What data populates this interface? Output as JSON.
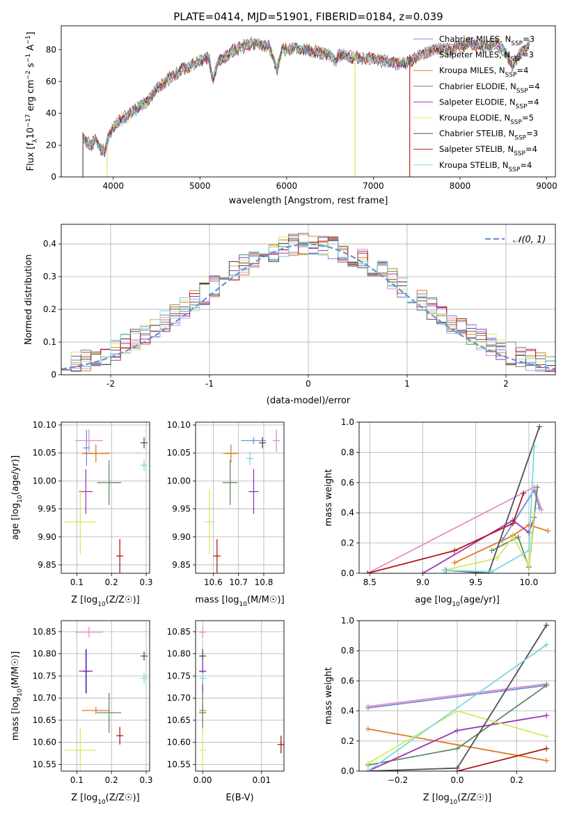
{
  "title": "PLATE=0414, MJD=51901, FIBERID=0184, z=0.039",
  "series_colors": {
    "chabrier_miles": "#6a8fd8",
    "salpeter_miles": "#e48cc8",
    "kroupa_miles": "#e07820",
    "chabrier_elodie": "#5f8a62",
    "salpeter_elodie": "#9a34b0",
    "kroupa_elodie": "#d8e860",
    "chabrier_stelib": "#505050",
    "salpeter_stelib": "#b01818",
    "kroupa_stelib": "#7ad8e0",
    "gaussian": "#6a8fd8"
  },
  "chart_data": [
    {
      "id": "spectrum",
      "type": "line",
      "xlabel": "wavelength [Angstrom, rest frame]",
      "ylabel": "Flux [f_λ10^-17 erg cm^-2 s^-1 A^-1]",
      "xlim": [
        3400,
        9100
      ],
      "ylim": [
        0,
        95
      ],
      "xticks": [
        4000,
        5000,
        6000,
        7000,
        8000,
        9000
      ],
      "yticks": [
        0,
        20,
        40,
        60,
        80
      ],
      "grid": false,
      "legend_position": "right",
      "legend": [
        {
          "label": "Chabrier MILES, N_SSP=3",
          "color_key": "chabrier_miles"
        },
        {
          "label": "Salpeter MILES, N_SSP=3",
          "color_key": "salpeter_miles"
        },
        {
          "label": "Kroupa MILES, N_SSP=4",
          "color_key": "kroupa_miles"
        },
        {
          "label": "Chabrier ELODIE, N_SSP=4",
          "color_key": "chabrier_elodie"
        },
        {
          "label": "Salpeter ELODIE, N_SSP=4",
          "color_key": "salpeter_elodie"
        },
        {
          "label": "Kroupa ELODIE, N_SSP=5",
          "color_key": "kroupa_elodie"
        },
        {
          "label": "Chabrier STELIB, N_SSP=3",
          "color_key": "chabrier_stelib"
        },
        {
          "label": "Salpeter STELIB, N_SSP=4",
          "color_key": "salpeter_stelib"
        },
        {
          "label": "Kroupa STELIB, N_SSP=4",
          "color_key": "kroupa_stelib"
        }
      ],
      "x": [
        3650,
        3700,
        3750,
        3800,
        3850,
        3900,
        3950,
        4000,
        4100,
        4200,
        4300,
        4400,
        4500,
        4600,
        4700,
        4800,
        4900,
        5000,
        5100,
        5150,
        5200,
        5300,
        5400,
        5500,
        5600,
        5700,
        5800,
        5890,
        5950,
        6000,
        6100,
        6200,
        6300,
        6400,
        6500,
        6563,
        6600,
        6700,
        6800,
        6900,
        7000,
        7100,
        7200,
        7300,
        7400,
        7500,
        7600,
        7700,
        7800,
        7900,
        8000,
        8100,
        8200,
        8300,
        8400,
        8500,
        8600,
        8700,
        8800
      ],
      "y": [
        25,
        22,
        20,
        24,
        18,
        16,
        26,
        32,
        36,
        40,
        44,
        48,
        55,
        60,
        64,
        68,
        70,
        73,
        75,
        60,
        72,
        76,
        80,
        82,
        84,
        83,
        82,
        68,
        80,
        80,
        81,
        80,
        79,
        78,
        77,
        72,
        77,
        76,
        75,
        74,
        75,
        73,
        72,
        71,
        72,
        75,
        78,
        80,
        81,
        80,
        82,
        84,
        83,
        82,
        84,
        80,
        70,
        78,
        83
      ],
      "spikes": [
        {
          "x": 3650,
          "y_from": 0,
          "y_to": 28,
          "color_key": "chabrier_stelib"
        },
        {
          "x": 3930,
          "y_from": 0,
          "y_to": 18,
          "color_key": "kroupa_elodie"
        },
        {
          "x": 6790,
          "y_from": 0,
          "y_to": 79,
          "color_key": "kroupa_elodie"
        },
        {
          "x": 7420,
          "y_from": 0,
          "y_to": 77,
          "color_key": "salpeter_stelib"
        }
      ]
    },
    {
      "id": "residuals",
      "type": "histogram",
      "xlabel": "(data-model)/error",
      "ylabel": "Normed distribution",
      "xlim": [
        -2.5,
        2.5
      ],
      "ylim": [
        0,
        0.46
      ],
      "xticks": [
        -2,
        -1,
        0,
        1,
        2
      ],
      "yticks": [
        0.0,
        0.1,
        0.2,
        0.3,
        0.4
      ],
      "grid": true,
      "legend_position": "top-right",
      "legend": [
        {
          "label": "𝒩(0, 1)",
          "style": "dashed",
          "color_key": "gaussian"
        }
      ],
      "bin_width": 0.1,
      "bins_from": -2.5,
      "bins_to": 2.5,
      "series_keys": [
        "chabrier_miles",
        "salpeter_miles",
        "kroupa_miles",
        "chabrier_elodie",
        "salpeter_elodie",
        "kroupa_elodie",
        "chabrier_stelib",
        "salpeter_stelib",
        "kroupa_stelib"
      ],
      "curve": "gaussian(0,1)"
    },
    {
      "id": "age_vs_z",
      "type": "errorbar",
      "xlabel": "Z [log10(Z/Z☉)]",
      "ylabel": "age  [log10(age/yr)]",
      "xlim": [
        0.055,
        0.31
      ],
      "ylim": [
        9.835,
        10.105
      ],
      "xticks": [
        0.1,
        0.2,
        0.3
      ],
      "xticklabels": [
        "0.1",
        "0.2",
        "0.3"
      ],
      "yticks": [
        9.85,
        9.9,
        9.95,
        10.0,
        10.05,
        10.1
      ],
      "yticklabels": [
        "9.85",
        "9.90",
        "9.95",
        "10.00",
        "10.05",
        "10.10"
      ],
      "grid": true,
      "points": [
        {
          "key": "chabrier_miles",
          "x": 0.128,
          "y": 10.059,
          "xerr": 0.0,
          "yerr": 0.032
        },
        {
          "key": "salpeter_miles",
          "x": 0.135,
          "y": 10.072,
          "xerr": 0.04,
          "yerr": 0.02
        },
        {
          "key": "kroupa_miles",
          "x": 0.155,
          "y": 10.049,
          "xerr": 0.04,
          "yerr": 0.016
        },
        {
          "key": "chabrier_elodie",
          "x": 0.193,
          "y": 9.997,
          "xerr": 0.035,
          "yerr": 0.04
        },
        {
          "key": "salpeter_elodie",
          "x": 0.126,
          "y": 9.981,
          "xerr": 0.02,
          "yerr": 0.04
        },
        {
          "key": "kroupa_elodie",
          "x": 0.11,
          "y": 9.927,
          "xerr": 0.045,
          "yerr": 0.058
        },
        {
          "key": "chabrier_stelib",
          "x": 0.294,
          "y": 10.068,
          "xerr": 0.005,
          "yerr": 0.01
        },
        {
          "key": "salpeter_stelib",
          "x": 0.224,
          "y": 9.866,
          "xerr": 0.008,
          "yerr": 0.03
        },
        {
          "key": "kroupa_stelib",
          "x": 0.294,
          "y": 10.028,
          "xerr": 0.005,
          "yerr": 0.01
        }
      ]
    },
    {
      "id": "age_vs_mass",
      "type": "errorbar",
      "xlabel": "mass [log10(M/M☉)]",
      "ylabel": "",
      "xlim": [
        10.53,
        10.88
      ],
      "ylim": [
        9.835,
        10.105
      ],
      "xticks": [
        10.6,
        10.7,
        10.8
      ],
      "xticklabels": [
        "10.6",
        "10.7",
        "10.8"
      ],
      "yticks": [
        9.85,
        9.9,
        9.95,
        10.0,
        10.05,
        10.1
      ],
      "yticklabels": [
        "9.85",
        "9.90",
        "9.95",
        "10.00",
        "10.05",
        "10.10"
      ],
      "grid": true,
      "points": [
        {
          "key": "chabrier_miles",
          "x": 10.76,
          "y": 10.072,
          "xerr": 0.05,
          "yerr": 0.0
        },
        {
          "key": "salpeter_miles",
          "x": 10.85,
          "y": 10.072,
          "xerr": 0.015,
          "yerr": 0.02
        },
        {
          "key": "kroupa_miles",
          "x": 10.67,
          "y": 10.049,
          "xerr": 0.03,
          "yerr": 0.016
        },
        {
          "key": "chabrier_elodie",
          "x": 10.667,
          "y": 9.997,
          "xerr": 0.03,
          "yerr": 0.04
        },
        {
          "key": "salpeter_elodie",
          "x": 10.76,
          "y": 9.981,
          "xerr": 0.02,
          "yerr": 0.04
        },
        {
          "key": "kroupa_elodie",
          "x": 10.585,
          "y": 9.927,
          "xerr": 0.02,
          "yerr": 0.058
        },
        {
          "key": "chabrier_stelib",
          "x": 10.795,
          "y": 10.068,
          "xerr": 0.005,
          "yerr": 0.01
        },
        {
          "key": "salpeter_stelib",
          "x": 10.615,
          "y": 9.866,
          "xerr": 0.007,
          "yerr": 0.03
        },
        {
          "key": "kroupa_stelib",
          "x": 10.745,
          "y": 10.04,
          "xerr": 0.005,
          "yerr": 0.012
        }
      ]
    },
    {
      "id": "weight_vs_age",
      "type": "line",
      "xlabel": "age  [log10(age/yr)]",
      "ylabel": "mass weight",
      "xlim": [
        8.4,
        10.25
      ],
      "ylim": [
        0,
        1
      ],
      "xticks": [
        8.5,
        9.0,
        9.5,
        10.0
      ],
      "xticklabels": [
        "8.5",
        "9.0",
        "9.5",
        "10.0"
      ],
      "yticks": [
        0,
        0.2,
        0.4,
        0.6,
        0.8,
        1.0
      ],
      "yticklabels": [
        "0.0",
        "0.2",
        "0.4",
        "0.6",
        "0.8",
        "1.0"
      ],
      "grid": true,
      "series": [
        {
          "key": "chabrier_miles",
          "x": [
            9.75,
            10.05,
            10.1
          ],
          "y": [
            0.22,
            0.55,
            0.43
          ]
        },
        {
          "key": "salpeter_miles",
          "x": [
            8.48,
            10.05,
            10.12
          ],
          "y": [
            0.0,
            0.57,
            0.42
          ]
        },
        {
          "key": "kroupa_miles",
          "x": [
            9.3,
            9.85,
            10.0,
            10.18
          ],
          "y": [
            0.07,
            0.25,
            0.32,
            0.28
          ]
        },
        {
          "key": "chabrier_elodie",
          "x": [
            9.65,
            9.9,
            10.0,
            10.08
          ],
          "y": [
            0.15,
            0.24,
            0.04,
            0.57
          ]
        },
        {
          "key": "salpeter_elodie",
          "x": [
            9.0,
            9.85,
            10.0,
            10.05
          ],
          "y": [
            0.0,
            0.35,
            0.27,
            0.37
          ]
        },
        {
          "key": "kroupa_elodie",
          "x": [
            9.2,
            9.7,
            9.85,
            10.0,
            10.05
          ],
          "y": [
            0.02,
            0.1,
            0.24,
            0.05,
            0.4
          ]
        },
        {
          "key": "chabrier_stelib",
          "x": [
            9.22,
            9.62,
            10.1
          ],
          "y": [
            0.02,
            0.0,
            0.97
          ]
        },
        {
          "key": "salpeter_stelib",
          "x": [
            8.48,
            9.3,
            9.85,
            9.95
          ],
          "y": [
            0.0,
            0.15,
            0.33,
            0.53
          ]
        },
        {
          "key": "kroupa_stelib",
          "x": [
            9.2,
            9.65,
            10.0,
            10.05
          ],
          "y": [
            0.02,
            0.01,
            0.15,
            0.84
          ]
        }
      ]
    },
    {
      "id": "mass_vs_z",
      "type": "errorbar",
      "xlabel": "Z [log10(Z/Z☉)]",
      "ylabel": "mass [log10(M/M☉)]",
      "xlim": [
        0.055,
        0.31
      ],
      "ylim": [
        10.535,
        10.875
      ],
      "xticks": [
        0.1,
        0.2,
        0.3
      ],
      "xticklabels": [
        "0.1",
        "0.2",
        "0.3"
      ],
      "yticks": [
        10.55,
        10.6,
        10.65,
        10.7,
        10.75,
        10.8,
        10.85
      ],
      "yticklabels": [
        "10.55",
        "10.60",
        "10.65",
        "10.70",
        "10.75",
        "10.80",
        "10.85"
      ],
      "grid": true,
      "points": [
        {
          "key": "chabrier_miles",
          "x": 0.128,
          "y": 10.76,
          "xerr": 0.0,
          "yerr": 0.05
        },
        {
          "key": "salpeter_miles",
          "x": 0.135,
          "y": 10.849,
          "xerr": 0.04,
          "yerr": 0.012
        },
        {
          "key": "kroupa_miles",
          "x": 0.155,
          "y": 10.672,
          "xerr": 0.04,
          "yerr": 0.0
        },
        {
          "key": "chabrier_elodie",
          "x": 0.193,
          "y": 10.667,
          "xerr": 0.035,
          "yerr": 0.045
        },
        {
          "key": "salpeter_elodie",
          "x": 0.126,
          "y": 10.761,
          "xerr": 0.02,
          "yerr": 0.05
        },
        {
          "key": "kroupa_elodie",
          "x": 0.11,
          "y": 10.582,
          "xerr": 0.045,
          "yerr": 0.05
        },
        {
          "key": "chabrier_stelib",
          "x": 0.294,
          "y": 10.795,
          "xerr": 0.005,
          "yerr": 0.01
        },
        {
          "key": "salpeter_stelib",
          "x": 0.224,
          "y": 10.615,
          "xerr": 0.008,
          "yerr": 0.02
        },
        {
          "key": "kroupa_stelib",
          "x": 0.294,
          "y": 10.745,
          "xerr": 0.005,
          "yerr": 0.012
        }
      ]
    },
    {
      "id": "mass_vs_ebv",
      "type": "errorbar",
      "xlabel": "E(B-V)",
      "ylabel": "",
      "xlim": [
        -0.0012,
        0.0138
      ],
      "ylim": [
        10.535,
        10.875
      ],
      "xticks": [
        0.0,
        0.01
      ],
      "xticklabels": [
        "0.00",
        "0.01"
      ],
      "yticks": [
        10.55,
        10.6,
        10.65,
        10.7,
        10.75,
        10.8,
        10.85
      ],
      "yticklabels": [
        "10.55",
        "10.60",
        "10.65",
        "10.70",
        "10.75",
        "10.80",
        "10.85"
      ],
      "grid": true,
      "points": [
        {
          "key": "chabrier_miles",
          "x": 0.0,
          "y": 10.76,
          "xerr": 0.0,
          "yerr": 0.05
        },
        {
          "key": "salpeter_miles",
          "x": 0.0,
          "y": 10.849,
          "xerr": 0.0,
          "yerr": 0.012
        },
        {
          "key": "kroupa_miles",
          "x": 0.0,
          "y": 10.672,
          "xerr": 0.0,
          "yerr": 0.02
        },
        {
          "key": "chabrier_elodie",
          "x": 0.0,
          "y": 10.667,
          "xerr": 0.0,
          "yerr": 0.045
        },
        {
          "key": "salpeter_elodie",
          "x": 0.0,
          "y": 10.761,
          "xerr": 0.0,
          "yerr": 0.05
        },
        {
          "key": "kroupa_elodie",
          "x": 0.0,
          "y": 10.582,
          "xerr": 0.0,
          "yerr": 0.05
        },
        {
          "key": "chabrier_stelib",
          "x": 0.0,
          "y": 10.795,
          "xerr": 0.0,
          "yerr": 0.01
        },
        {
          "key": "salpeter_stelib",
          "x": 0.0133,
          "y": 10.595,
          "xerr": 0.0,
          "yerr": 0.02
        },
        {
          "key": "kroupa_stelib",
          "x": 0.0,
          "y": 10.745,
          "xerr": 0.0,
          "yerr": 0.012
        }
      ]
    },
    {
      "id": "weight_vs_z",
      "type": "line",
      "xlabel": "Z [log10(Z/Z☉)]",
      "ylabel": "mass weight",
      "xlim": [
        -0.33,
        0.33
      ],
      "ylim": [
        0,
        1
      ],
      "xticks": [
        -0.2,
        0.0,
        0.2
      ],
      "xticklabels": [
        "−0.2",
        "0.0",
        "0.2"
      ],
      "yticks": [
        0,
        0.2,
        0.4,
        0.6,
        0.8,
        1.0
      ],
      "yticklabels": [
        "0.0",
        "0.2",
        "0.4",
        "0.6",
        "0.8",
        "1.0"
      ],
      "grid": true,
      "series": [
        {
          "key": "chabrier_miles",
          "x": [
            -0.3,
            0.3
          ],
          "y": [
            0.42,
            0.57
          ]
        },
        {
          "key": "salpeter_miles",
          "x": [
            -0.3,
            0.3
          ],
          "y": [
            0.43,
            0.58
          ]
        },
        {
          "key": "kroupa_miles",
          "x": [
            -0.3,
            0.3
          ],
          "y": [
            0.28,
            0.07
          ]
        },
        {
          "key": "chabrier_elodie",
          "x": [
            -0.3,
            0.0,
            0.3
          ],
          "y": [
            0.04,
            0.15,
            0.57
          ]
        },
        {
          "key": "salpeter_elodie",
          "x": [
            -0.3,
            0.0,
            0.3
          ],
          "y": [
            0.0,
            0.27,
            0.37
          ]
        },
        {
          "key": "kroupa_elodie",
          "x": [
            -0.3,
            0.0,
            0.3
          ],
          "y": [
            0.05,
            0.4,
            0.23
          ]
        },
        {
          "key": "chabrier_stelib",
          "x": [
            -0.3,
            0.0,
            0.3
          ],
          "y": [
            0.0,
            0.02,
            0.97
          ]
        },
        {
          "key": "salpeter_stelib",
          "x": [
            0.0,
            0.3
          ],
          "y": [
            0.0,
            0.15
          ]
        },
        {
          "key": "kroupa_stelib",
          "x": [
            -0.3,
            0.3
          ],
          "y": [
            0.0,
            0.84
          ]
        }
      ]
    }
  ]
}
